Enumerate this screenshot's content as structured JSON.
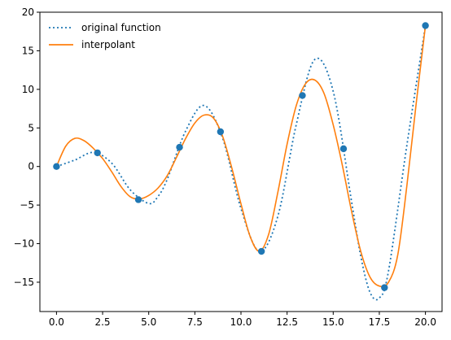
{
  "chart_data": {
    "type": "line",
    "title": "",
    "xlabel": "",
    "ylabel": "",
    "xlim": [
      -0.9,
      20.9
    ],
    "ylim": [
      -18.8,
      20.0
    ],
    "grid": false,
    "legend_position": "top-left",
    "x_ticks": [
      0.0,
      2.5,
      5.0,
      7.5,
      10.0,
      12.5,
      15.0,
      17.5,
      20.0
    ],
    "x_tick_labels": [
      "0.0",
      "2.5",
      "5.0",
      "7.5",
      "10.0",
      "12.5",
      "15.0",
      "17.5",
      "20.0"
    ],
    "y_ticks": [
      -15,
      -10,
      -5,
      0,
      5,
      10,
      15,
      20
    ],
    "y_tick_labels": [
      "−15",
      "−10",
      "−5",
      "0",
      "5",
      "10",
      "15",
      "20"
    ],
    "series": [
      {
        "name": "original function",
        "style": "dotted",
        "color": "#1f77b4",
        "x": [
          0.0,
          1.0,
          2.0,
          3.0,
          4.0,
          5.0,
          5.5,
          6.0,
          7.0,
          8.0,
          9.0,
          10.0,
          11.0,
          12.0,
          13.0,
          14.0,
          15.0,
          16.0,
          16.5,
          17.0,
          17.5,
          18.0,
          19.0,
          20.0
        ],
        "y": [
          0.0,
          0.84,
          1.82,
          0.42,
          -3.03,
          -4.79,
          -3.89,
          -1.68,
          4.6,
          7.91,
          3.71,
          -5.44,
          -10.99,
          -6.44,
          5.46,
          13.87,
          9.75,
          -4.61,
          -11.7,
          -16.34,
          -17.05,
          -13.52,
          2.85,
          18.26
        ]
      },
      {
        "name": "interpolant",
        "style": "solid",
        "color": "#ff7f0e",
        "x": [
          0.0,
          0.5,
          1.0,
          1.5,
          2.0,
          2.5,
          3.0,
          3.5,
          4.0,
          4.5,
          5.0,
          5.5,
          6.0,
          6.5,
          7.0,
          7.5,
          8.0,
          8.5,
          9.0,
          9.5,
          10.0,
          10.5,
          11.0,
          11.5,
          12.0,
          12.5,
          13.0,
          13.5,
          14.0,
          14.5,
          15.0,
          15.5,
          16.0,
          16.5,
          17.0,
          17.5,
          18.0,
          18.5,
          19.0,
          19.5,
          20.0
        ],
        "y": [
          0.0,
          2.63,
          3.65,
          3.34,
          2.35,
          1.03,
          -0.71,
          -2.61,
          -3.93,
          -4.2,
          -3.75,
          -2.8,
          -1.2,
          1.16,
          3.63,
          5.64,
          6.66,
          6.3,
          3.95,
          -0.16,
          -4.84,
          -9.09,
          -10.99,
          -8.8,
          -3.33,
          2.89,
          7.91,
          10.73,
          11.21,
          9.49,
          5.4,
          0.11,
          -5.86,
          -11.06,
          -14.36,
          -15.5,
          -15.0,
          -11.45,
          -2.36,
          8.2,
          18.26
        ]
      },
      {
        "name": "",
        "style": "markers",
        "color": "#1f77b4",
        "x": [
          0.0,
          2.22,
          4.44,
          6.67,
          8.89,
          11.11,
          13.33,
          15.56,
          17.78,
          20.0
        ],
        "y": [
          0.0,
          1.77,
          -4.3,
          2.49,
          4.5,
          -11.0,
          9.2,
          2.3,
          -15.7,
          18.26
        ]
      }
    ]
  }
}
